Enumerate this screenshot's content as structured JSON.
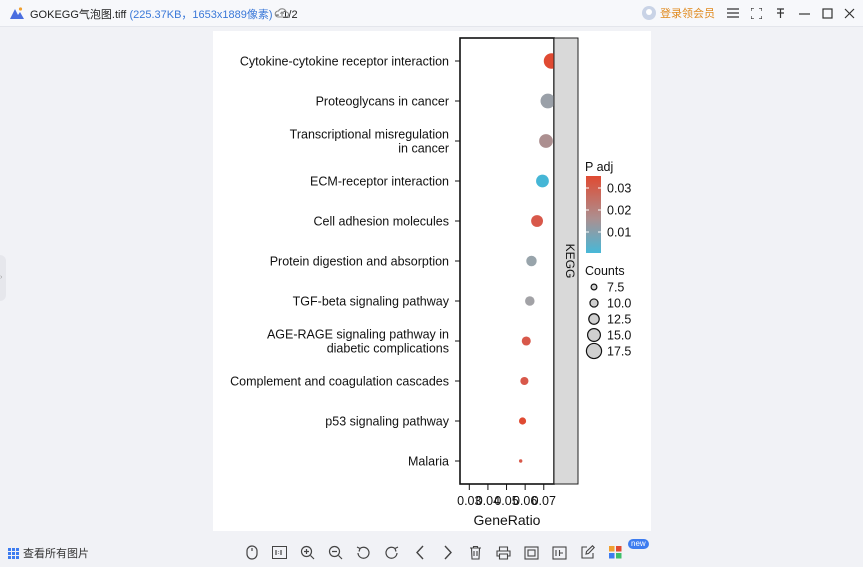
{
  "window": {
    "file_name": "GOKEGG气泡图.tiff",
    "file_meta": "(225.37KB，1653x1889像素)",
    "page_indicator": " - 1/2",
    "vip_label": "登录领会员"
  },
  "bottom": {
    "view_all_label": "查看所有图片",
    "new_badge": "new"
  },
  "chart_data": {
    "type": "scatter",
    "xlabel": "GeneRatio",
    "xtick_labels": [
      "0.03",
      "0.04",
      "0.05",
      "0.06",
      "0.07"
    ],
    "xlim": [
      0.025,
      0.0755
    ],
    "facet_label": "KEGG",
    "color_legend_title": "P adj",
    "color_legend_ticks": [
      "0.03",
      "0.02",
      "0.01"
    ],
    "color_scale": {
      "low": "#47b8d8",
      "mid": "#9a9ea6",
      "high": "#e04a32"
    },
    "size_legend_title": "Counts",
    "size_legend_ticks": [
      "7.5",
      "10.0",
      "12.5",
      "15.0",
      "17.5"
    ],
    "pathways": [
      {
        "label": [
          "Cytokine-cytokine receptor interaction"
        ],
        "gene_ratio": 0.0742,
        "count": 18,
        "color": "#e04a32"
      },
      {
        "label": [
          "Proteoglycans in cancer"
        ],
        "gene_ratio": 0.0722,
        "count": 17,
        "color": "#9aa0a8"
      },
      {
        "label": [
          "Transcriptional misregulation",
          "in cancer"
        ],
        "gene_ratio": 0.0712,
        "count": 16,
        "color": "#ac8f90"
      },
      {
        "label": [
          "ECM-receptor interaction"
        ],
        "gene_ratio": 0.0693,
        "count": 15,
        "color": "#45b6d6"
      },
      {
        "label": [
          "Cell adhesion molecules"
        ],
        "gene_ratio": 0.0664,
        "count": 14,
        "color": "#d8584a"
      },
      {
        "label": [
          "Protein digestion and absorption"
        ],
        "gene_ratio": 0.0634,
        "count": 12.5,
        "color": "#98a4ab"
      },
      {
        "label": [
          "TGF-beta signaling pathway"
        ],
        "gene_ratio": 0.0625,
        "count": 11.5,
        "color": "#a2a2a6"
      },
      {
        "label": [
          "AGE-RAGE signaling pathway in",
          "diabetic complications"
        ],
        "gene_ratio": 0.0606,
        "count": 11,
        "color": "#d8584a"
      },
      {
        "label": [
          "Complement and coagulation cascades"
        ],
        "gene_ratio": 0.0596,
        "count": 10,
        "color": "#d8584a"
      },
      {
        "label": [
          "p53 signaling pathway"
        ],
        "gene_ratio": 0.0586,
        "count": 9,
        "color": "#e04a32"
      },
      {
        "label": [
          "Malaria"
        ],
        "gene_ratio": 0.0576,
        "count": 5,
        "color": "#d8584a"
      }
    ]
  }
}
